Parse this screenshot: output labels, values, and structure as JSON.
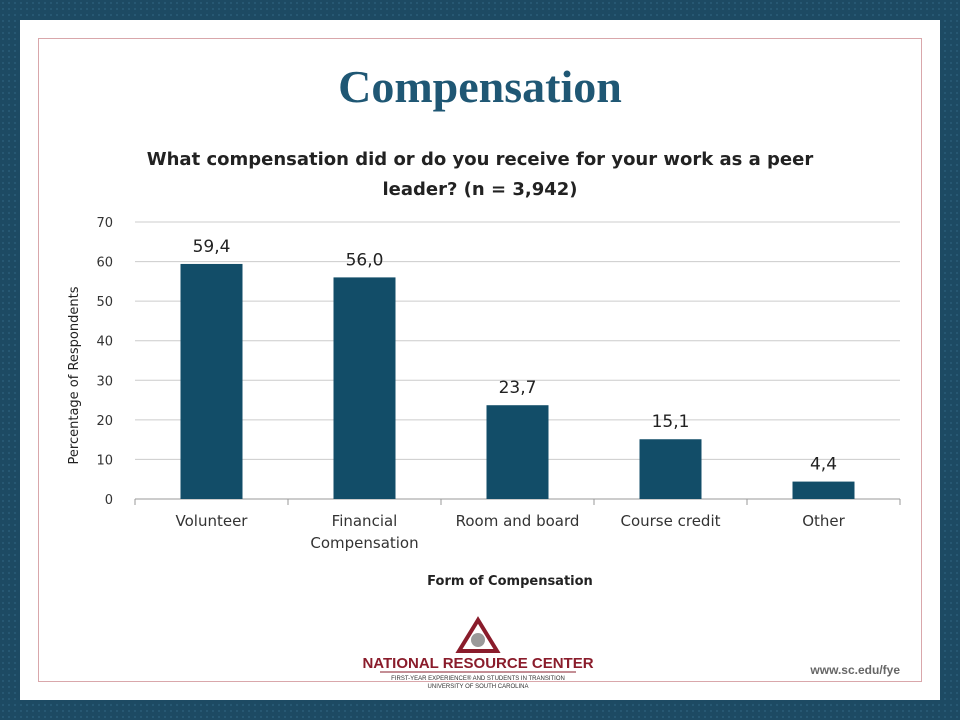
{
  "slide": {
    "title": "Compensation",
    "logo_name": "NATIONAL RESOURCE CENTER",
    "logo_tagline": "FIRST-YEAR EXPERIENCE® AND STUDENTS IN TRANSITION",
    "logo_university": "UNIVERSITY OF SOUTH CAROLINA",
    "url": "www.sc.edu/fye"
  },
  "colors": {
    "bar": "#124d68",
    "title": "#1f5774",
    "grid": "#cccccc"
  },
  "chart_data": {
    "type": "bar",
    "title_lines": [
      "What compensation did or do you receive for your work as a peer",
      "leader? (n = 3,942)"
    ],
    "categories": [
      [
        "Volunteer"
      ],
      [
        "Financial",
        "Compensation"
      ],
      [
        "Room and board"
      ],
      [
        "Course credit"
      ],
      [
        "Other"
      ]
    ],
    "values": [
      59.4,
      56.0,
      23.7,
      15.1,
      4.4
    ],
    "value_labels": [
      "59,4",
      "56,0",
      "23,7",
      "15,1",
      "4,4"
    ],
    "xlabel": "Form of Compensation",
    "ylabel": "Percentage of Respondents",
    "ylim": [
      0,
      70
    ],
    "yticks": [
      "0",
      "10",
      "20",
      "30",
      "40",
      "50",
      "60",
      "70"
    ],
    "grid": true
  }
}
